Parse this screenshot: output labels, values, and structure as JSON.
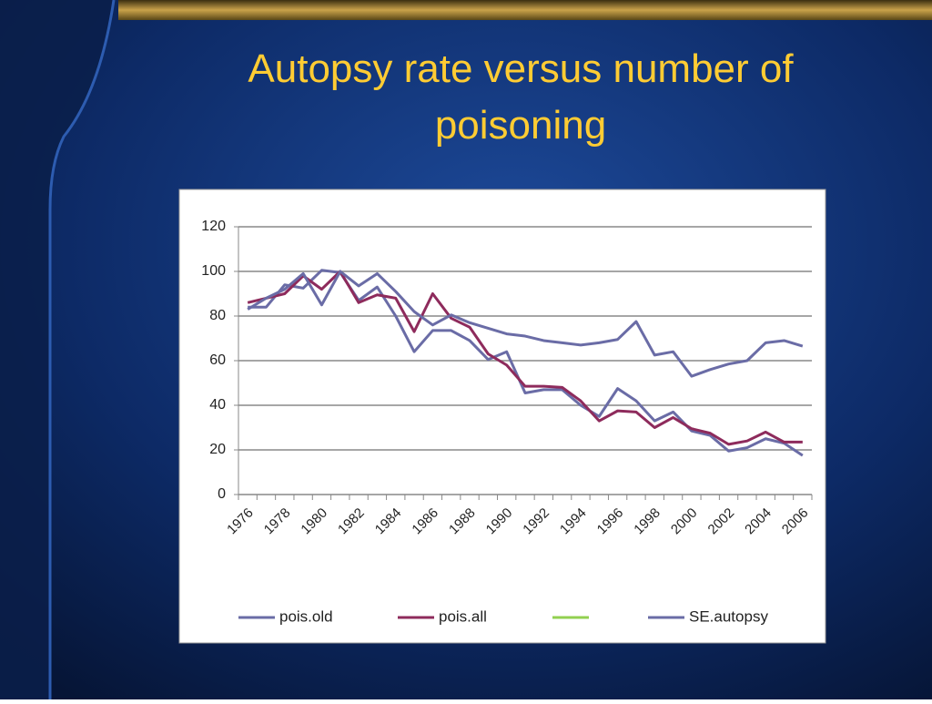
{
  "chart_data": {
    "type": "line",
    "title": "Autopsy rate versus number of poisoning",
    "categories": [
      "1976",
      null,
      "1978",
      null,
      "1980",
      null,
      "1982",
      null,
      "1984",
      null,
      "1986",
      null,
      "1988",
      null,
      "1990",
      null,
      "1992",
      null,
      "1994",
      null,
      "1996",
      null,
      "1998",
      null,
      "2000",
      null,
      "2002",
      null,
      "2004",
      null,
      "2006"
    ],
    "series": [
      {
        "name": "pois.old",
        "color": "#6a6ca6",
        "values": [
          84,
          84,
          94,
          92.5,
          100.5,
          99.5,
          87,
          93,
          80,
          64,
          73.5,
          73.5,
          69,
          60.5,
          64,
          45.5,
          47,
          47,
          40,
          35,
          47.5,
          42,
          33,
          37,
          28.5,
          26.5,
          19.5,
          21,
          25,
          23,
          17.5
        ]
      },
      {
        "name": "pois.all",
        "color": "#8e2b5c",
        "values": [
          86,
          88,
          90,
          98,
          92,
          100,
          86,
          89.5,
          88,
          73,
          90,
          79,
          75,
          63,
          58,
          48.5,
          48.5,
          48,
          42,
          33,
          37.5,
          37,
          30,
          34.5,
          29.5,
          27.5,
          22.5,
          24,
          28,
          23.5,
          23.5
        ]
      },
      {
        "name": null,
        "color": "#92d050",
        "values": [
          null,
          null,
          null,
          null,
          null,
          null,
          null,
          null,
          null,
          null,
          null,
          null,
          null,
          null,
          null,
          null,
          null,
          null,
          null,
          null,
          null,
          null,
          null,
          null,
          null,
          null,
          null,
          null,
          null,
          null,
          null
        ]
      },
      {
        "name": "SE.autopsy",
        "color": "#6a6ca6",
        "values": [
          83,
          88,
          92,
          99,
          85,
          100,
          93.5,
          99,
          91,
          82,
          76,
          80.5,
          77,
          74.5,
          72,
          71,
          69,
          68,
          67,
          68,
          69.5,
          77.5,
          62.5,
          64,
          53,
          56,
          58.5,
          60,
          68,
          69,
          66.5
        ]
      }
    ],
    "ylim": [
      0,
      120
    ],
    "yticks": [
      0,
      20,
      40,
      60,
      80,
      100,
      120
    ],
    "grid": true,
    "legend": "bottom"
  }
}
